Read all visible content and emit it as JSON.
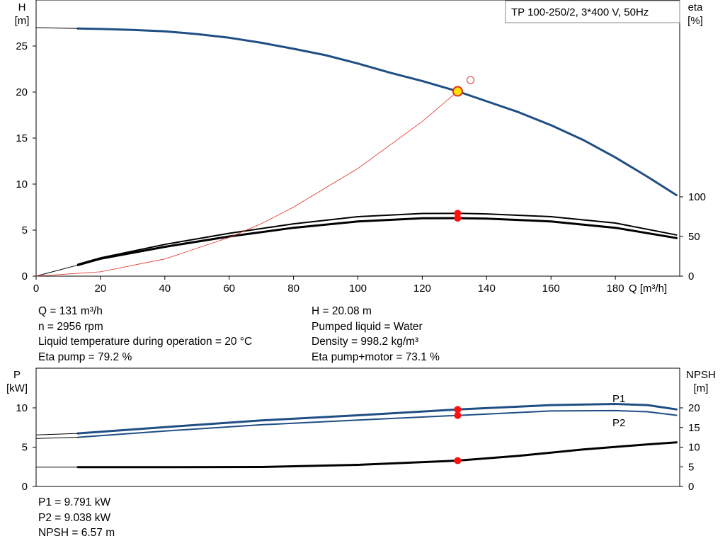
{
  "chart_data": [
    {
      "type": "line",
      "title": "TP 100-250/2, 3*400 V, 50Hz",
      "xlabel": "Q [m³/h]",
      "ylabel": [
        "H",
        "[m]"
      ],
      "y2label": [
        "eta",
        "[%]"
      ],
      "xlim": [
        0,
        200
      ],
      "ylim": [
        0,
        30
      ],
      "y2lim": [
        0,
        100
      ],
      "xticks": [
        "0",
        "20",
        "40",
        "60",
        "80",
        "100",
        "120",
        "140",
        "160",
        "180"
      ],
      "yticks": [
        "0",
        "5",
        "10",
        "15",
        "20",
        "25"
      ],
      "y2ticks": [
        "0",
        "50",
        "100"
      ],
      "grid": false,
      "series": [
        {
          "id": "H",
          "axis": "left",
          "color": "#1F4E84",
          "x": [
            13,
            20,
            30,
            40,
            50,
            60,
            70,
            80,
            90,
            100,
            110,
            120,
            131,
            140,
            150,
            160,
            170,
            180,
            190,
            199
          ],
          "y": [
            26.9,
            26.85,
            26.75,
            26.6,
            26.3,
            25.9,
            25.35,
            24.7,
            24.0,
            23.1,
            22.1,
            21.2,
            20.08,
            19.0,
            17.8,
            16.4,
            14.8,
            12.9,
            10.8,
            8.8
          ]
        },
        {
          "id": "H_ext",
          "axis": "left",
          "color": "#000000",
          "x": [
            0,
            13
          ],
          "y": [
            27.0,
            26.9
          ]
        },
        {
          "id": "eta_pump",
          "axis": "right",
          "color": "#000000",
          "x": [
            13,
            20,
            40,
            60,
            80,
            100,
            120,
            131,
            140,
            160,
            180,
            199
          ],
          "y": [
            15,
            23,
            40,
            54,
            66,
            75,
            79,
            79.2,
            78.5,
            75,
            67,
            52
          ]
        },
        {
          "id": "eta_pump_motor",
          "axis": "right",
          "color": "#000000",
          "x": [
            13,
            20,
            40,
            60,
            80,
            100,
            120,
            131,
            140,
            160,
            180,
            199
          ],
          "y": [
            14,
            22,
            37,
            50,
            61,
            69,
            73,
            73.1,
            72.5,
            69,
            61,
            48
          ]
        },
        {
          "id": "eta_ext",
          "axis": "right",
          "color": "#000000",
          "x": [
            0,
            13
          ],
          "y": [
            0,
            14
          ]
        },
        {
          "id": "system_curve",
          "axis": "left",
          "color": "#E03020",
          "x": [
            0,
            20,
            40,
            60,
            70,
            80,
            100,
            120,
            131
          ],
          "y": [
            0,
            0.47,
            1.87,
            4.2,
            5.7,
            7.5,
            11.7,
            16.8,
            20.08
          ]
        }
      ],
      "duty_point": {
        "x": 131,
        "y": 20.08,
        "fill": "#FFE000",
        "stroke": "#E03020"
      },
      "requested_point": {
        "x": 135,
        "y": 21.3,
        "stroke": "#E03020"
      },
      "eta_markers": [
        {
          "x": 131,
          "y": 79.2
        },
        {
          "x": 131,
          "y": 73.1
        }
      ],
      "annotations": []
    },
    {
      "type": "line",
      "title": "",
      "ylabel": [
        "P",
        "[kW]"
      ],
      "y2label": [
        "NPSH",
        "[m]"
      ],
      "xlim": [
        0,
        200
      ],
      "ylim": [
        0,
        12
      ],
      "y2lim": [
        0,
        24
      ],
      "yticks": [
        "0",
        "5",
        "10"
      ],
      "y2ticks": [
        "0",
        "5",
        "10",
        "15",
        "20"
      ],
      "grid": false,
      "series": [
        {
          "id": "P1",
          "name": "P1",
          "axis": "left",
          "color": "#1F4E84",
          "x": [
            13,
            40,
            70,
            100,
            131,
            160,
            180,
            190,
            199
          ],
          "y": [
            6.75,
            7.55,
            8.4,
            9.05,
            9.791,
            10.35,
            10.5,
            10.35,
            9.8
          ]
        },
        {
          "id": "P2",
          "name": "P2",
          "axis": "left",
          "color": "#1F4E84",
          "x": [
            13,
            40,
            70,
            100,
            131,
            160,
            180,
            190,
            199
          ],
          "y": [
            6.25,
            7.05,
            7.85,
            8.45,
            9.038,
            9.6,
            9.65,
            9.5,
            9.05
          ]
        },
        {
          "id": "P1_ext",
          "axis": "left",
          "color": "#000000",
          "x": [
            0,
            13
          ],
          "y": [
            6.55,
            6.75
          ]
        },
        {
          "id": "P2_ext",
          "axis": "left",
          "color": "#000000",
          "x": [
            0,
            13
          ],
          "y": [
            6.1,
            6.25
          ]
        },
        {
          "id": "NPSH",
          "axis": "right",
          "color": "#000000",
          "x": [
            13,
            40,
            70,
            100,
            131,
            150,
            170,
            190,
            199
          ],
          "y": [
            4.9,
            4.9,
            4.95,
            5.5,
            6.57,
            7.8,
            9.4,
            10.7,
            11.2
          ]
        },
        {
          "id": "NPSH_ext",
          "axis": "right",
          "color": "#000000",
          "x": [
            0,
            13
          ],
          "y": [
            4.9,
            4.9
          ]
        }
      ],
      "markers": [
        {
          "x": 131,
          "y": 9.791,
          "axis": "left"
        },
        {
          "x": 131,
          "y": 9.038,
          "axis": "left"
        },
        {
          "x": 131,
          "y": 6.57,
          "axis": "right"
        }
      ]
    }
  ],
  "info": {
    "left": [
      "Q = 131 m³/h",
      "n = 2956 rpm",
      "Liquid temperature during operation = 20 °C",
      "Eta pump = 79.2 %"
    ],
    "right": [
      "H = 20.08 m",
      "Pumped liquid = Water",
      "Density = 998.2 kg/m³",
      "Eta pump+motor = 73.1 %"
    ],
    "bottom": [
      "P1 = 9.791 kW",
      "P2 = 9.038 kW",
      "NPSH = 6.57 m"
    ]
  }
}
